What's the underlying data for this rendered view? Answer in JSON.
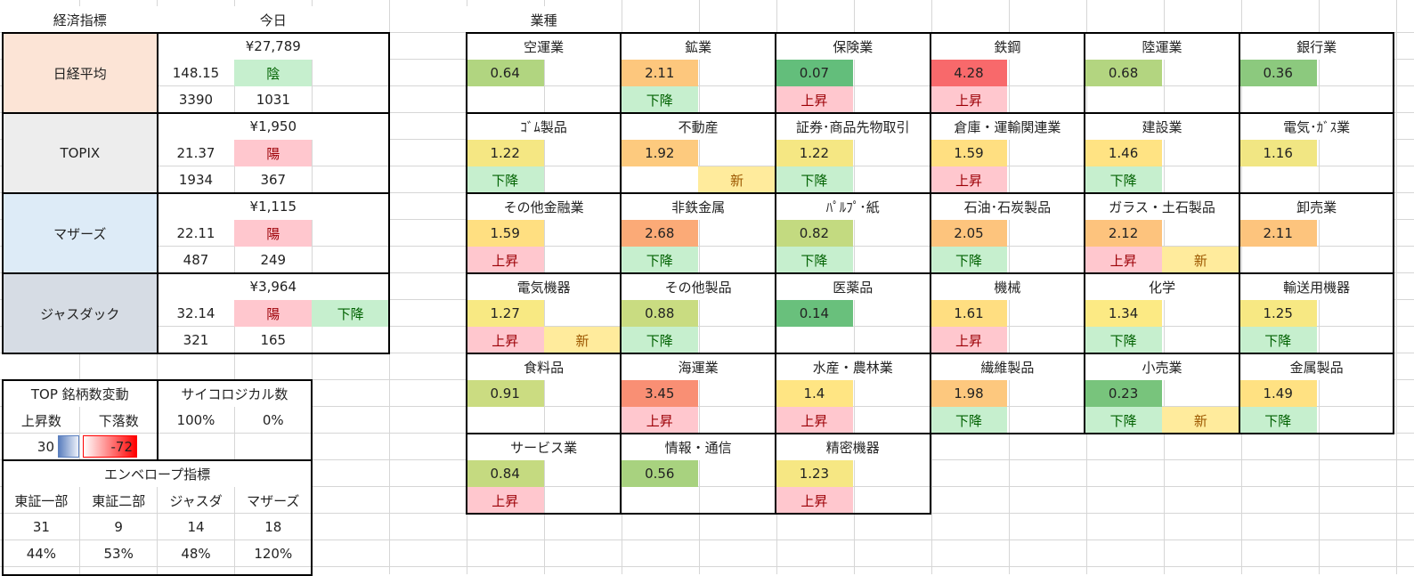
{
  "header": {
    "indicator_label": "経済指標",
    "today_label": "今日",
    "sector_label": "業種"
  },
  "indices": [
    {
      "name": "日経平均",
      "bg": "#FCE4D6",
      "price": "¥27,789",
      "change": "148.15",
      "candle": "陰",
      "candle_type": "down",
      "trend": "",
      "count_a": "3390",
      "count_b": "1031"
    },
    {
      "name": "TOPIX",
      "bg": "#EDEDED",
      "price": "¥1,950",
      "change": "21.37",
      "candle": "陽",
      "candle_type": "up",
      "trend": "",
      "count_a": "1934",
      "count_b": "367"
    },
    {
      "name": "マザーズ",
      "bg": "#DDEBF7",
      "price": "¥1,115",
      "change": "22.11",
      "candle": "陽",
      "candle_type": "up",
      "trend": "",
      "count_a": "487",
      "count_b": "249"
    },
    {
      "name": "ジャスダック",
      "bg": "#D6DCE4",
      "price": "¥3,964",
      "change": "32.14",
      "candle": "陽",
      "candle_type": "up",
      "trend": "下降",
      "trend_type": "down",
      "count_a": "321",
      "count_b": "165"
    }
  ],
  "top_stocks": {
    "title": "TOP 銘柄数変動",
    "rise_label": "上昇数",
    "fall_label": "下落数",
    "rise_value": "30",
    "fall_value": "-72",
    "rise_bar_color": "#5B7FBF",
    "fall_bar_color": "#FF0000"
  },
  "psychological": {
    "title": "サイコロジカル数",
    "values": [
      "100%",
      "0%"
    ]
  },
  "envelope": {
    "title": "エンベロープ指標",
    "columns": [
      "東証一部",
      "東証二部",
      "ジャスダ",
      "マザーズ"
    ],
    "counts": [
      "31",
      "9",
      "14",
      "18"
    ],
    "percents": [
      "44%",
      "53%",
      "48%",
      "120%"
    ]
  },
  "sectors": [
    {
      "name": "空運業",
      "value": "0.64",
      "color": "#B1D580",
      "trend": "",
      "new": ""
    },
    {
      "name": "鉱業",
      "value": "2.11",
      "color": "#FDC77D",
      "trend": "下降",
      "new": ""
    },
    {
      "name": "保険業",
      "value": "0.07",
      "color": "#63BE7B",
      "trend": "上昇",
      "new": ""
    },
    {
      "name": "鉄鋼",
      "value": "4.28",
      "color": "#F8696B",
      "trend": "上昇",
      "new": ""
    },
    {
      "name": "陸運業",
      "value": "0.68",
      "color": "#B3D580",
      "trend": "",
      "new": ""
    },
    {
      "name": "銀行業",
      "value": "0.36",
      "color": "#8CC97E",
      "trend": "",
      "new": ""
    },
    {
      "name": "ｺﾞﾑ製品",
      "value": "1.22",
      "color": "#F5E783",
      "trend": "下降",
      "new": ""
    },
    {
      "name": "不動産",
      "value": "1.92",
      "color": "#FDCA7E",
      "trend": "",
      "new": "新"
    },
    {
      "name": "証券･商品先物取引",
      "value": "1.22",
      "color": "#F5E783",
      "trend": "下降",
      "new": ""
    },
    {
      "name": "倉庫・運輸関連業",
      "value": "1.59",
      "color": "#FFDF81",
      "trend": "上昇",
      "new": ""
    },
    {
      "name": "建設業",
      "value": "1.46",
      "color": "#FFE383",
      "trend": "下降",
      "new": ""
    },
    {
      "name": "電気･ｶﾞｽ業",
      "value": "1.16",
      "color": "#F1E683",
      "trend": "",
      "new": ""
    },
    {
      "name": "その他金融業",
      "value": "1.59",
      "color": "#FFDF81",
      "trend": "上昇",
      "new": ""
    },
    {
      "name": "非鉄金属",
      "value": "2.68",
      "color": "#FBAA77",
      "trend": "下降",
      "new": ""
    },
    {
      "name": "ﾊﾟﾙﾌﾟ･紙",
      "value": "0.82",
      "color": "#C3DA80",
      "trend": "下降",
      "new": ""
    },
    {
      "name": "石油･石炭製品",
      "value": "2.05",
      "color": "#FDC47D",
      "trend": "下降",
      "new": ""
    },
    {
      "name": "ガラス・土石製品",
      "value": "2.12",
      "color": "#FDC37D",
      "trend": "上昇",
      "new": "新"
    },
    {
      "name": "卸売業",
      "value": "2.11",
      "color": "#FDC47D",
      "trend": "",
      "new": ""
    },
    {
      "name": "電気機器",
      "value": "1.27",
      "color": "#F8E983",
      "trend": "上昇",
      "new": "新"
    },
    {
      "name": "その他製品",
      "value": "0.88",
      "color": "#C9DC81",
      "trend": "下降",
      "new": ""
    },
    {
      "name": "医薬品",
      "value": "0.14",
      "color": "#69C07C",
      "trend": "",
      "new": ""
    },
    {
      "name": "機械",
      "value": "1.61",
      "color": "#FFDE81",
      "trend": "上昇",
      "new": ""
    },
    {
      "name": "化学",
      "value": "1.34",
      "color": "#FCEA84",
      "trend": "下降",
      "new": ""
    },
    {
      "name": "輸送用機器",
      "value": "1.25",
      "color": "#F7E883",
      "trend": "下降",
      "new": ""
    },
    {
      "name": "食料品",
      "value": "0.91",
      "color": "#CBDC81",
      "trend": "",
      "new": ""
    },
    {
      "name": "海運業",
      "value": "3.45",
      "color": "#F98F74",
      "trend": "上昇",
      "new": ""
    },
    {
      "name": "水産・農林業",
      "value": "1.4",
      "color": "#FFE583",
      "trend": "上昇",
      "new": ""
    },
    {
      "name": "繊維製品",
      "value": "1.98",
      "color": "#FDC87E",
      "trend": "下降",
      "new": ""
    },
    {
      "name": "小売業",
      "value": "0.23",
      "color": "#78C47C",
      "trend": "下降",
      "new": "新"
    },
    {
      "name": "金属製品",
      "value": "1.49",
      "color": "#FFE182",
      "trend": "下降",
      "new": ""
    },
    {
      "name": "サービス業",
      "value": "0.84",
      "color": "#C5DA80",
      "trend": "上昇",
      "new": ""
    },
    {
      "name": "情報・通信",
      "value": "0.56",
      "color": "#A8D27F",
      "trend": "",
      "new": ""
    },
    {
      "name": "精密機器",
      "value": "1.23",
      "color": "#F6E783",
      "trend": "上昇",
      "new": ""
    }
  ]
}
